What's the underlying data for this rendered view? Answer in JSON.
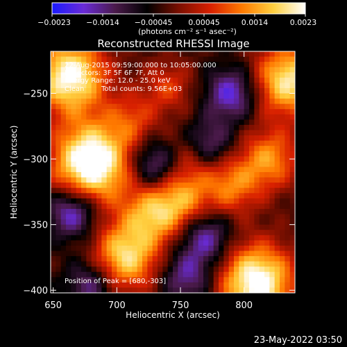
{
  "colorbar": {
    "stops": [
      "#1a1aff",
      "#6a2bd6",
      "#4a1a4a",
      "#000000",
      "#7a0f00",
      "#d82000",
      "#ff7a00",
      "#ffd040",
      "#ffffff"
    ],
    "ticks": [
      "−0.0023",
      "−0.0014",
      "−0.00045",
      "0.00045",
      "0.0014",
      "0.0023"
    ],
    "unit_label": "(photons cm⁻² s⁻¹ asec⁻²)"
  },
  "chart_data": {
    "type": "heatmap",
    "title": "Reconstructed RHESSI Image",
    "xlabel": "Heliocentric X (arcsec)",
    "ylabel": "Heliocentric Y (arcsec)",
    "xlim": [
      648,
      840
    ],
    "ylim": [
      -402,
      -218
    ],
    "xticks": [
      650,
      700,
      750,
      800
    ],
    "yticks": [
      -250,
      -300,
      -350,
      -400
    ],
    "annotations": {
      "time_range": "22-Aug-2015 09:59:00.000 to 10:05:00.000",
      "detectors": "Detectors: 3F 5F 6F 7F, Att 0",
      "energy": "Energy Range: 12.0 - 25.0 keV",
      "algorithm": "Clean",
      "counts": "Total counts: 9.56E+03",
      "peak": "Position of Peak = [680,-303]"
    },
    "sources": [
      {
        "x": 680,
        "y": -303,
        "intensity": 1.0
      },
      {
        "x": 663,
        "y": -237,
        "intensity": 0.85
      },
      {
        "x": 810,
        "y": -394,
        "intensity": 0.9
      },
      {
        "x": 835,
        "y": -240,
        "intensity": 0.75
      },
      {
        "x": 706,
        "y": -375,
        "intensity": 0.7
      },
      {
        "x": 728,
        "y": -342,
        "intensity": 0.55
      },
      {
        "x": 752,
        "y": -330,
        "intensity": 0.45
      },
      {
        "x": 790,
        "y": -320,
        "intensity": 0.45
      },
      {
        "x": 820,
        "y": -300,
        "intensity": 0.5
      },
      {
        "x": 760,
        "y": -297,
        "intensity": 0.4
      },
      {
        "x": 712,
        "y": -270,
        "intensity": 0.3
      },
      {
        "x": 740,
        "y": -245,
        "intensity": 0.3
      },
      {
        "x": 770,
        "y": -290,
        "intensity": -0.55
      },
      {
        "x": 730,
        "y": -305,
        "intensity": -0.45
      },
      {
        "x": 790,
        "y": -250,
        "intensity": -0.5
      },
      {
        "x": 665,
        "y": -340,
        "intensity": -0.55
      },
      {
        "x": 770,
        "y": -360,
        "intensity": -0.45
      },
      {
        "x": 680,
        "y": -395,
        "intensity": -0.4
      },
      {
        "x": 755,
        "y": -390,
        "intensity": -0.4
      }
    ]
  },
  "footer": {
    "timestamp": "23-May-2022 03:50"
  }
}
